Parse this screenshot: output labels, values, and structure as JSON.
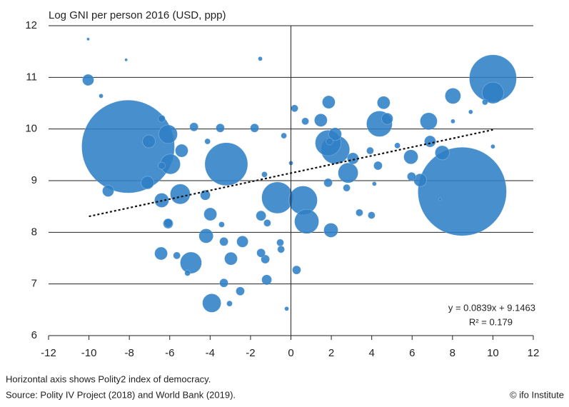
{
  "chart_data": {
    "type": "scatter",
    "title": "Log GNI per person 2016 (USD, ppp)",
    "color": "#2f80c6",
    "xlim": [
      -12,
      12
    ],
    "xticks": [
      -12,
      -10,
      -8,
      -6,
      -4,
      -2,
      0,
      2,
      4,
      6,
      8,
      10,
      12
    ],
    "ylim": [
      6,
      12
    ],
    "yticks": [
      6,
      7,
      8,
      9,
      10,
      11,
      12
    ],
    "grid": true,
    "x": [
      -8.06,
      8.48,
      10,
      -3.2,
      -0.67,
      0.6,
      0.78,
      4.38,
      2.2,
      1.84,
      2.83,
      10,
      -4.95,
      -5.48,
      -5.97,
      -6.08,
      -3.92,
      6.82,
      8.02,
      7.49,
      5.94,
      6.4,
      -4.2,
      -3.99,
      -2.97,
      1.98,
      1.87,
      4.59,
      4.77,
      -10.04,
      -9.05,
      -7.1,
      -7.03,
      -6.4,
      -6.43,
      -5.41,
      -6.08,
      -4.24,
      -2.4,
      -3.32,
      -2.51,
      -3.32,
      -1.2,
      -1.27,
      -1.48,
      -1.48,
      -0.53,
      -0.49,
      0.28,
      -1.8,
      -3.5,
      -4.8,
      1.48,
      2.19,
      3.07,
      4.31,
      6.89,
      5.97,
      1.84,
      3.39,
      3.99,
      0.18,
      0.71,
      -6.4,
      -6.4,
      -6.08,
      -1.52,
      -10.04,
      -8.16,
      -9.4,
      -0.21,
      9.61,
      8.9,
      8.02,
      10,
      7.39,
      -3.04,
      -4.13,
      -5.65,
      -5.12,
      -1.31,
      0,
      -0.35,
      4.13,
      3.92,
      5.27,
      2.76,
      1.91,
      -3.43,
      -1.17
    ],
    "y": [
      9.66,
      8.79,
      10.98,
      9.32,
      8.67,
      8.62,
      8.21,
      10.1,
      9.6,
      9.73,
      9.15,
      10.7,
      7.41,
      8.74,
      9.32,
      9.9,
      6.63,
      10.15,
      10.64,
      9.54,
      9.46,
      9.01,
      7.93,
      8.35,
      7.49,
      8.04,
      10.52,
      10.51,
      10.2,
      10.95,
      8.8,
      8.96,
      9.76,
      8.62,
      7.59,
      9.58,
      8.17,
      8.72,
      7.82,
      7.82,
      6.86,
      7.02,
      7.08,
      7.48,
      8.32,
      7.6,
      7.8,
      7.67,
      7.27,
      10.02,
      10.02,
      10.04,
      10.17,
      9.9,
      9.43,
      9.29,
      9.76,
      9.08,
      8.96,
      8.38,
      8.33,
      10.4,
      10.15,
      10.2,
      9.29,
      8.18,
      11.36,
      11.74,
      11.34,
      10.64,
      6.52,
      10.52,
      10.33,
      10.15,
      9.66,
      8.64,
      6.62,
      9.76,
      7.55,
      7.21,
      9.12,
      9.34,
      9.87,
      8.94,
      9.58,
      9.68,
      8.86,
      9.76,
      8.15,
      8.18
    ],
    "sizes": [
      65,
      62,
      33,
      30,
      22,
      20,
      17,
      18,
      20,
      18,
      14,
      15,
      15,
      14,
      14,
      13,
      13,
      12,
      11,
      10,
      10,
      9,
      10,
      9,
      9,
      10,
      9,
      9,
      8,
      8,
      8,
      9,
      9,
      10,
      9,
      9,
      7,
      7,
      8,
      6,
      6,
      6,
      7,
      6,
      7,
      6,
      5,
      5,
      6,
      6,
      6,
      6,
      9,
      9,
      8,
      6,
      8,
      6,
      6,
      5,
      5,
      5,
      5,
      5,
      5,
      6,
      3,
      2,
      2,
      3,
      3,
      4,
      3,
      3,
      3,
      2,
      4,
      4,
      5,
      4,
      4,
      3,
      4,
      3,
      5,
      4,
      5,
      5,
      4,
      5
    ],
    "trendline": {
      "slope": 0.0839,
      "intercept": 9.1463,
      "x": [
        -10,
        10
      ]
    },
    "annotations": [
      "y = 0.0839x + 9.1463",
      "R² = 0.179"
    ],
    "notes": [
      "Horizontal axis shows Polity2 index of democracy.",
      "Source: Polity IV Project (2018) and World Bank (2019)."
    ],
    "credit": "© ifo Institute"
  }
}
